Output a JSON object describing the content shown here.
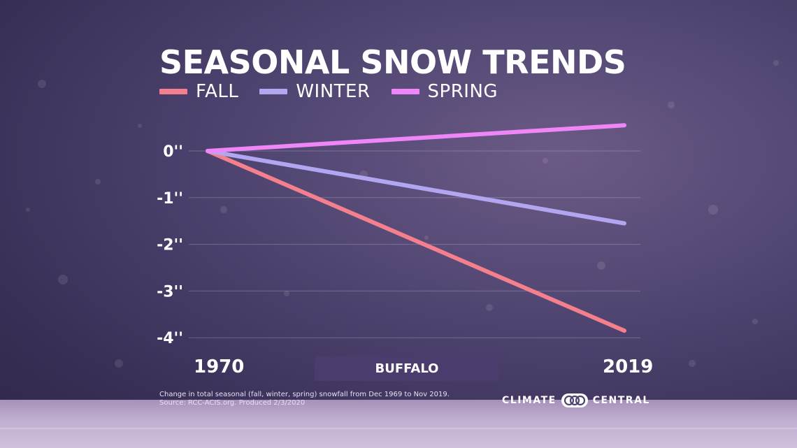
{
  "chart_data": {
    "type": "line",
    "title": "SEASONAL SNOW TRENDS",
    "subtitle": "BUFFALO",
    "x": [
      1970,
      2019
    ],
    "xticks": [
      "1970",
      "2019"
    ],
    "yticks": [
      "0''",
      "-1''",
      "-2''",
      "-3''",
      "-4''"
    ],
    "ylim": [
      -4,
      0
    ],
    "grid": true,
    "legend_position": "top-left",
    "series": [
      {
        "name": "FALL",
        "color": "#f47f8d",
        "values": [
          0,
          -3.85
        ]
      },
      {
        "name": "WINTER",
        "color": "#b2a6f0",
        "values": [
          0,
          -1.55
        ]
      },
      {
        "name": "SPRING",
        "color": "#ef86f7",
        "values": [
          0,
          0.55
        ]
      }
    ],
    "annotations": [
      "Change in total seasonal (fall, winter, spring) snowfall from Dec 1969 to Nov 2019.",
      "Source: RCC-ACIS.org. Produced 2/3/2020"
    ]
  },
  "branding": {
    "left": "CLIMATE",
    "right": "CENTRAL",
    "icon": "climate-central-logo-icon"
  },
  "colors": {
    "background": "#4f4470",
    "accent": "#4a3d6e"
  }
}
